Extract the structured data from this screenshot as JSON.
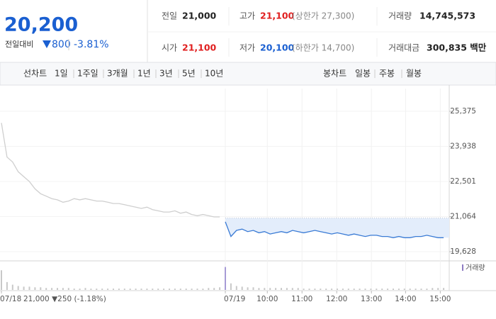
{
  "quote": {
    "price": "20,200",
    "change_label": "전일대비",
    "change": "800",
    "change_pct": "-3.81%"
  },
  "summary": [
    [
      {
        "label": "전일",
        "value": "21,000"
      },
      {
        "label": "고가",
        "value": "21,100",
        "note": "(상한가 27,300)"
      },
      {
        "label": "거래량",
        "value": "14,745,573"
      }
    ],
    [
      {
        "label": "시가",
        "value": "21,100"
      },
      {
        "label": "저가",
        "value": "20,100",
        "note": "(하한가 14,700)"
      },
      {
        "label": "거래대금",
        "value": "300,835 백만"
      }
    ]
  ],
  "tabs": {
    "line_label": "선차트",
    "line_items": [
      "1일",
      "1주일",
      "3개월",
      "1년",
      "3년",
      "5년",
      "10년"
    ],
    "candle_label": "봉차트",
    "candle_items": [
      "일봉",
      "주봉",
      "월봉"
    ]
  },
  "chart_data": {
    "type": "line",
    "prev_day_label": "21,000 ▼250 (-1.18%)",
    "reference_line": 21000,
    "xlim": [
      0,
      80
    ],
    "xticks": [
      {
        "value": 0,
        "label": "07/18"
      },
      {
        "value": 40,
        "label": "07/19"
      },
      {
        "value": 47.5,
        "label": "10:00"
      },
      {
        "value": 53.7,
        "label": "11:00"
      },
      {
        "value": 59.9,
        "label": "12:00"
      },
      {
        "value": 66.1,
        "label": "13:00"
      },
      {
        "value": 72.2,
        "label": "14:00"
      },
      {
        "value": 78.4,
        "label": "15:00"
      }
    ],
    "ylim": [
      19338,
      26304
    ],
    "yticks": [
      {
        "value": 25375,
        "label": "25,375"
      },
      {
        "value": 23938,
        "label": "23,938"
      },
      {
        "value": 22501,
        "label": "22,501"
      },
      {
        "value": 21064,
        "label": "21,064"
      },
      {
        "value": 19628,
        "label": "19,628"
      }
    ],
    "grid": true,
    "series": [
      {
        "color": "#cfcfcf",
        "values": [
          24900,
          23500,
          23300,
          22900,
          22700,
          22500,
          22200,
          22000,
          21900,
          21800,
          21750,
          21650,
          21700,
          21800,
          21750,
          21800,
          21750,
          21700,
          21700,
          21650,
          21600,
          21600,
          21550,
          21500,
          21450,
          21400,
          21450,
          21350,
          21300,
          21250,
          21250,
          21300,
          21200,
          21250,
          21150,
          21100,
          21150,
          21100,
          21050,
          21050,
          null,
          null,
          null,
          null,
          null,
          null,
          null,
          null,
          null,
          null,
          null,
          null,
          null,
          null,
          null,
          null,
          null,
          null,
          null,
          null,
          null,
          null,
          null,
          null,
          null,
          null,
          null,
          null,
          null,
          null,
          null,
          null,
          null,
          null,
          null,
          null,
          null,
          null,
          null,
          null
        ]
      },
      {
        "color": "#3a7bd5",
        "fill": "#e3edfb",
        "values": [
          null,
          null,
          null,
          null,
          null,
          null,
          null,
          null,
          null,
          null,
          null,
          null,
          null,
          null,
          null,
          null,
          null,
          null,
          null,
          null,
          null,
          null,
          null,
          null,
          null,
          null,
          null,
          null,
          null,
          null,
          null,
          null,
          null,
          null,
          null,
          null,
          null,
          null,
          null,
          null,
          20850,
          20250,
          20500,
          20550,
          20450,
          20500,
          20400,
          20450,
          20350,
          20400,
          20450,
          20400,
          20500,
          20450,
          20400,
          20450,
          20500,
          20450,
          20400,
          20350,
          20400,
          20350,
          20300,
          20350,
          20300,
          20250,
          20300,
          20300,
          20250,
          20250,
          20200,
          20250,
          20200,
          20200,
          20250,
          20250,
          20300,
          20250,
          20200,
          20200
        ]
      }
    ],
    "volume": {
      "name": "거래량",
      "color": "#c8c8c8",
      "ylim": [
        0,
        40
      ],
      "values": [
        30,
        12,
        8,
        6,
        5,
        5,
        4,
        4,
        3,
        3,
        3,
        3,
        3,
        2,
        2,
        3,
        2,
        2,
        2,
        2,
        2,
        2,
        2,
        2,
        2,
        2,
        2,
        2,
        2,
        2,
        2,
        2,
        2,
        2,
        2,
        2,
        2,
        3,
        3,
        4,
        35,
        10,
        6,
        5,
        4,
        4,
        3,
        3,
        3,
        3,
        3,
        3,
        3,
        3,
        2,
        2,
        2,
        2,
        2,
        2,
        2,
        2,
        2,
        2,
        2,
        2,
        2,
        2,
        2,
        2,
        2,
        2,
        2,
        2,
        2,
        2,
        2,
        3,
        3,
        3
      ]
    }
  }
}
